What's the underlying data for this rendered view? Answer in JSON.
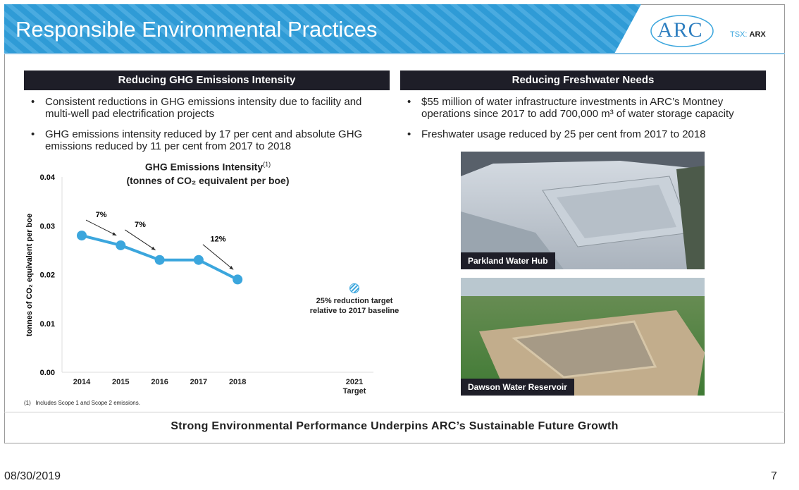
{
  "header": {
    "title": "Responsible Environmental Practices",
    "logo": "ARC",
    "ticker_label": "TSX:",
    "ticker": "ARX"
  },
  "left_panel": {
    "heading": "Reducing GHG Emissions Intensity",
    "bullets": [
      "Consistent reductions in GHG emissions intensity due to facility and multi-well pad electrification projects",
      "GHG emissions intensity reduced by 17 per cent and absolute GHG emissions reduced by 11 per cent from 2017 to 2018"
    ]
  },
  "chart_data": {
    "type": "line",
    "title": "GHG Emissions Intensity",
    "title_note": "(1)",
    "subtitle": "(tonnes of CO₂ equivalent per boe)",
    "y_label": "tonnes of CO₂ equivalent per boe",
    "categories": [
      "2014",
      "2015",
      "2016",
      "2017",
      "2018",
      "2021 Target"
    ],
    "values": [
      0.028,
      0.026,
      0.023,
      0.023,
      0.019,
      null
    ],
    "color": "#3ba6dd",
    "target": {
      "value": 0.0172,
      "label": "25% reduction target relative to 2017 baseline"
    },
    "annotations": [
      "7%",
      "7%",
      "12%"
    ],
    "ylim": [
      0,
      0.04
    ],
    "yticks": [
      {
        "value": 0,
        "label": "0.00"
      },
      0.01,
      0.02,
      0.03,
      0.04
    ],
    "footnote": "(1)   Includes Scope 1 and Scope 2 emissions."
  },
  "right_panel": {
    "heading": "Reducing Freshwater Needs",
    "bullets": [
      "$55 million of water infrastructure investments in ARC’s Montney operations since 2017 to add 700,000 m³ of water storage capacity",
      "Freshwater usage reduced by 25 per cent from 2017 to 2018"
    ],
    "photos": [
      {
        "caption": "Parkland Water Hub"
      },
      {
        "caption": "Dawson Water Reservoir"
      }
    ]
  },
  "footer_banner": "Strong Environmental Performance Underpins ARC’s Sustainable Future Growth",
  "footer": {
    "date": "08/30/2019",
    "page": "7"
  }
}
